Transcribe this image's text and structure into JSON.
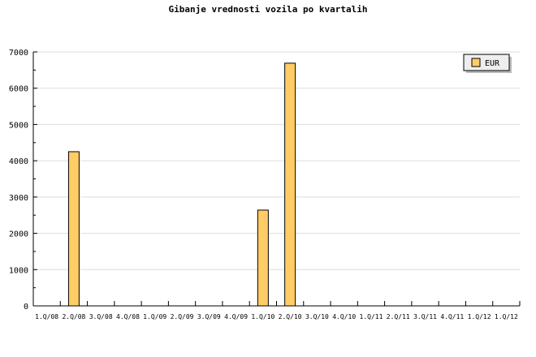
{
  "chart_data": {
    "type": "bar",
    "title": "Gibanje vrednosti vozila po kvartalih",
    "xlabel": "",
    "ylabel": "",
    "categories": [
      "1.Q/08",
      "2.Q/08",
      "3.Q/08",
      "4.Q/08",
      "1.Q/09",
      "2.Q/09",
      "3.Q/09",
      "4.Q/09",
      "1.Q/10",
      "2.Q/10",
      "3.Q/10",
      "4.Q/10",
      "1.Q/11",
      "2.Q/11",
      "3.Q/11",
      "4.Q/11",
      "1.Q/12",
      "1.Q/12"
    ],
    "series": [
      {
        "name": "EUR",
        "values": [
          0,
          4250,
          0,
          0,
          0,
          0,
          0,
          0,
          2640,
          6690,
          0,
          0,
          0,
          0,
          0,
          0,
          0,
          0
        ]
      }
    ],
    "ylim": [
      0,
      7000
    ],
    "yticks": [
      0,
      1000,
      2000,
      3000,
      4000,
      5000,
      6000,
      7000
    ],
    "grid": true,
    "legend": "top-right",
    "colors": {
      "bar": "#ffcc66",
      "grid": "#dddddd",
      "legend_bg": "#eeeeee"
    }
  }
}
